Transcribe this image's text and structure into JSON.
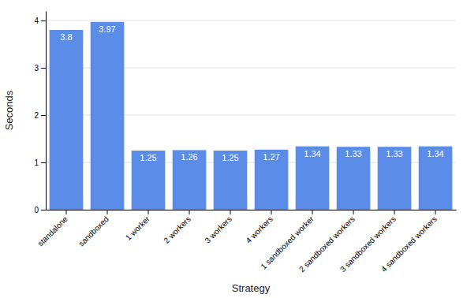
{
  "chart_data": {
    "type": "bar",
    "categories": [
      "standalone",
      "sandboxed",
      "1 worker",
      "2 workers",
      "3 workers",
      "4 workers",
      "1 sandboxed worker",
      "2 sandboxed workers",
      "3 sandboxed workers",
      "4 sandboxed workers"
    ],
    "values": [
      3.8,
      3.97,
      1.25,
      1.26,
      1.25,
      1.27,
      1.34,
      1.33,
      1.33,
      1.34
    ],
    "color": "#5b8de8",
    "xlabel": "Strategy",
    "ylabel": "Seconds",
    "ylim": [
      0,
      4.2
    ],
    "yticks": [
      0,
      1,
      2,
      3,
      4
    ],
    "grid": true,
    "data_labels": true
  }
}
